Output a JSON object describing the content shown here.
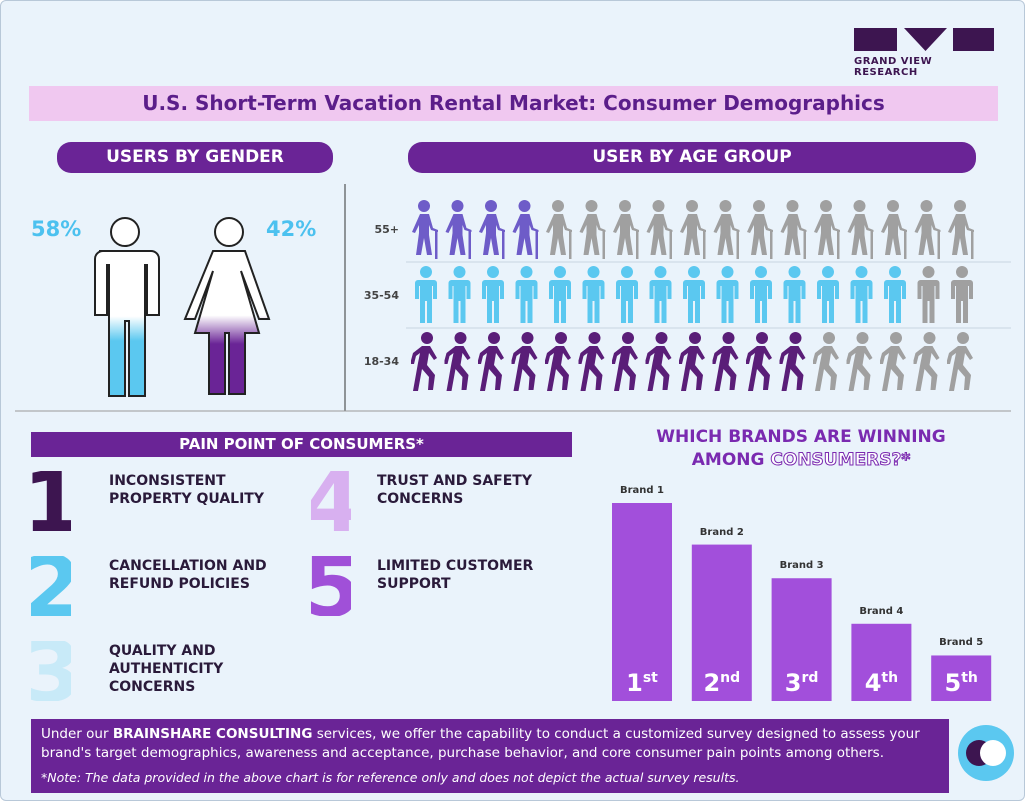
{
  "header": {
    "brand": "GRAND VIEW RESEARCH",
    "title": "U.S. Short-Term Vacation Rental Market: Consumer Demographics"
  },
  "gender": {
    "heading": "USERS BY GENDER",
    "male": "58%",
    "female": "42%"
  },
  "age_group": {
    "heading": "USER BY AGE GROUP",
    "icons": 17,
    "rows": [
      {
        "label": "55+",
        "filled": 4,
        "color": "#6e5cc8"
      },
      {
        "label": "35-54",
        "filled": 15,
        "color": "#5bc8f0"
      },
      {
        "label": "18-34",
        "filled": 12,
        "color": "#5a1e78"
      }
    ]
  },
  "pain_points": {
    "heading": "PAIN POINT OF CONSUMERS*",
    "items": [
      {
        "number": "1",
        "color": "#3d1550",
        "lines": [
          "INCONSISTENT",
          "PROPERTY QUALITY"
        ]
      },
      {
        "number": "2",
        "color": "#5bc8f0",
        "lines": [
          "CANCELLATION AND",
          "REFUND POLICIES"
        ]
      },
      {
        "number": "3",
        "color": "#c8eaf8",
        "lines": [
          "QUALITY AND",
          "AUTHENTICITY",
          "CONCERNS"
        ]
      },
      {
        "number": "4",
        "color": "#d8b0f0",
        "lines": [
          "TRUST AND SAFETY",
          "CONCERNS"
        ]
      },
      {
        "number": "5",
        "color": "#a050d8",
        "lines": [
          "LIMITED CUSTOMER",
          "SUPPORT"
        ]
      }
    ]
  },
  "chart_data": {
    "type": "bar",
    "title": "WHICH BRANDS ARE WINNING",
    "subtitle": "AMONG",
    "subtitle_highlight": "CONSUMERS?*",
    "categories": [
      "Brand 1",
      "Brand 2",
      "Brand 3",
      "Brand 4",
      "Brand 5"
    ],
    "values": [
      100,
      79,
      62,
      39,
      23
    ],
    "ranks": [
      {
        "number": "1",
        "suffix": "st"
      },
      {
        "number": "2",
        "suffix": "nd"
      },
      {
        "number": "3",
        "suffix": "rd"
      },
      {
        "number": "4",
        "suffix": "th"
      },
      {
        "number": "5",
        "suffix": "th"
      }
    ],
    "color": "#a24fdb"
  },
  "footer": {
    "text_before": "Under our ",
    "highlight": "BRAINSHARE CONSULTING",
    "text_after": " services, we offer the capability to conduct a customized survey designed to assess your brand's target demographics, awareness and acceptance, purchase behavior, and core consumer pain points among others.",
    "note": "*Note: The data provided in the above chart is for reference only and does not depict the actual survey results."
  }
}
